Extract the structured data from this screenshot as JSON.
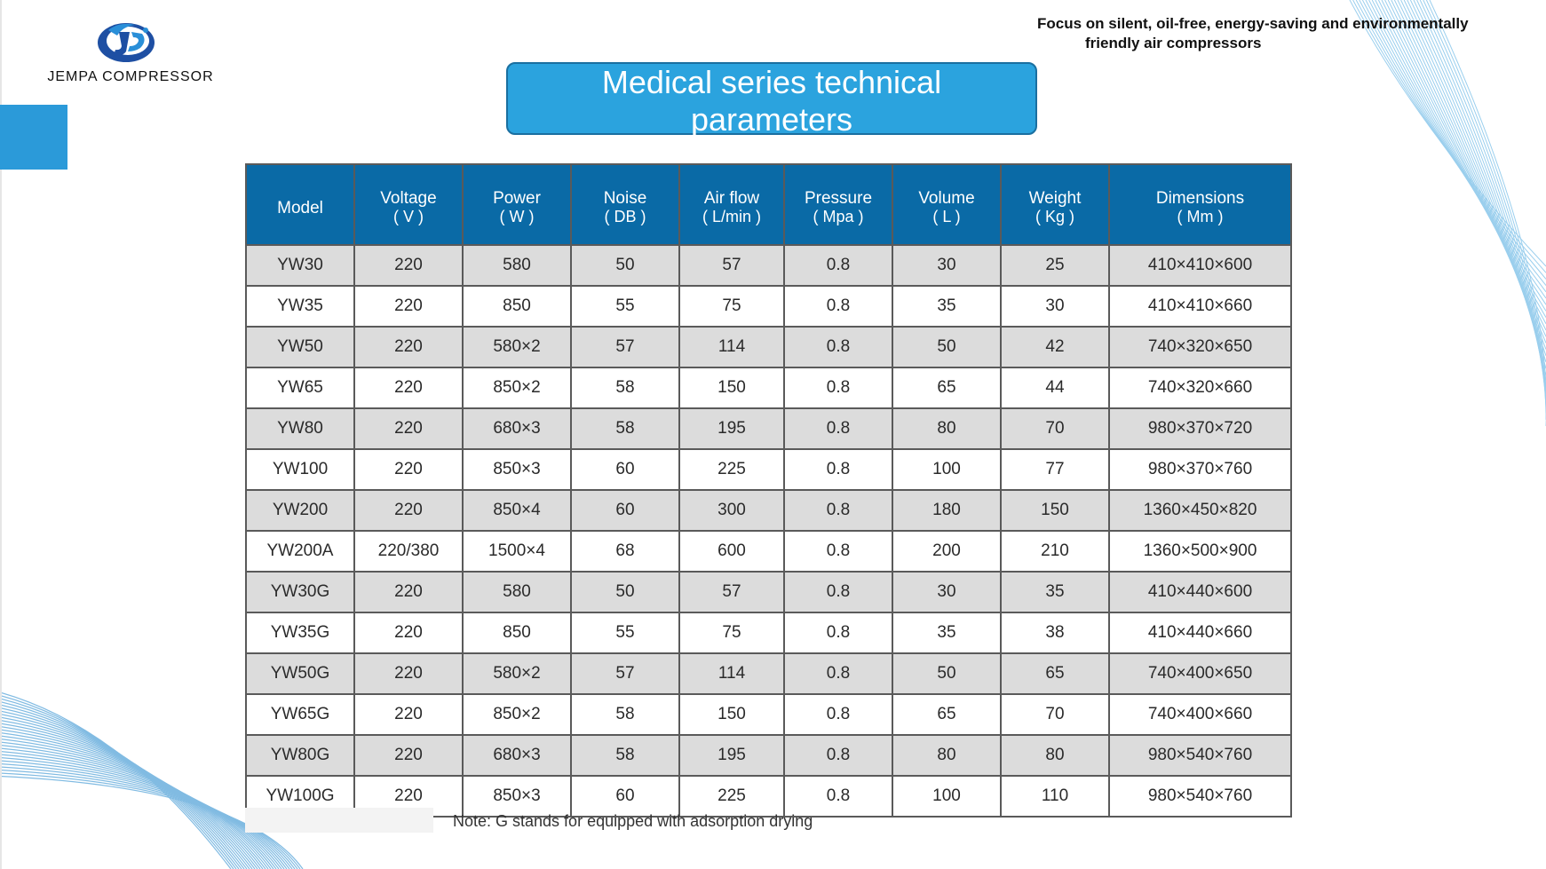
{
  "logo": {
    "name": "JEMPA COMPRESSOR",
    "icon": "jempa-logo-icon"
  },
  "tagline": {
    "line1": "Focus on silent, oil-free, energy-saving and environmentally",
    "line2": "friendly air compressors"
  },
  "title": {
    "line1": "Medical series technical",
    "line2": "parameters"
  },
  "colors": {
    "header_blue": "#0a6aa6",
    "title_blue": "#2ba3de",
    "accent_square": "#2b9ad9",
    "row_gray": "#dcdcdc"
  },
  "table": {
    "columns": [
      {
        "name": "Model",
        "unit": ""
      },
      {
        "name": "Voltage",
        "unit": "( V )"
      },
      {
        "name": "Power",
        "unit": "( W )"
      },
      {
        "name": "Noise",
        "unit": "( DB )"
      },
      {
        "name": "Air flow",
        "unit": "( L/min )"
      },
      {
        "name": "Pressure",
        "unit": "( Mpa )"
      },
      {
        "name": "Volume",
        "unit": "( L )"
      },
      {
        "name": "Weight",
        "unit": "( Kg )"
      },
      {
        "name": "Dimensions",
        "unit": "( Mm )"
      }
    ],
    "rows": [
      [
        "YW30",
        "220",
        "580",
        "50",
        "57",
        "0.8",
        "30",
        "25",
        "410×410×600"
      ],
      [
        "YW35",
        "220",
        "850",
        "55",
        "75",
        "0.8",
        "35",
        "30",
        "410×410×660"
      ],
      [
        "YW50",
        "220",
        "580×2",
        "57",
        "114",
        "0.8",
        "50",
        "42",
        "740×320×650"
      ],
      [
        "YW65",
        "220",
        "850×2",
        "58",
        "150",
        "0.8",
        "65",
        "44",
        "740×320×660"
      ],
      [
        "YW80",
        "220",
        "680×3",
        "58",
        "195",
        "0.8",
        "80",
        "70",
        "980×370×720"
      ],
      [
        "YW100",
        "220",
        "850×3",
        "60",
        "225",
        "0.8",
        "100",
        "77",
        "980×370×760"
      ],
      [
        "YW200",
        "220",
        "850×4",
        "60",
        "300",
        "0.8",
        "180",
        "150",
        "1360×450×820"
      ],
      [
        "YW200A",
        "220/380",
        "1500×4",
        "68",
        "600",
        "0.8",
        "200",
        "210",
        "1360×500×900"
      ],
      [
        "YW30G",
        "220",
        "580",
        "50",
        "57",
        "0.8",
        "30",
        "35",
        "410×440×600"
      ],
      [
        "YW35G",
        "220",
        "850",
        "55",
        "75",
        "0.8",
        "35",
        "38",
        "410×440×660"
      ],
      [
        "YW50G",
        "220",
        "580×2",
        "57",
        "114",
        "0.8",
        "50",
        "65",
        "740×400×650"
      ],
      [
        "YW65G",
        "220",
        "850×2",
        "58",
        "150",
        "0.8",
        "65",
        "70",
        "740×400×660"
      ],
      [
        "YW80G",
        "220",
        "680×3",
        "58",
        "195",
        "0.8",
        "80",
        "80",
        "980×540×760"
      ],
      [
        "YW100G",
        "220",
        "850×3",
        "60",
        "225",
        "0.8",
        "100",
        "110",
        "980×540×760"
      ]
    ]
  },
  "note": "Note: G stands for equipped with adsorption drying"
}
